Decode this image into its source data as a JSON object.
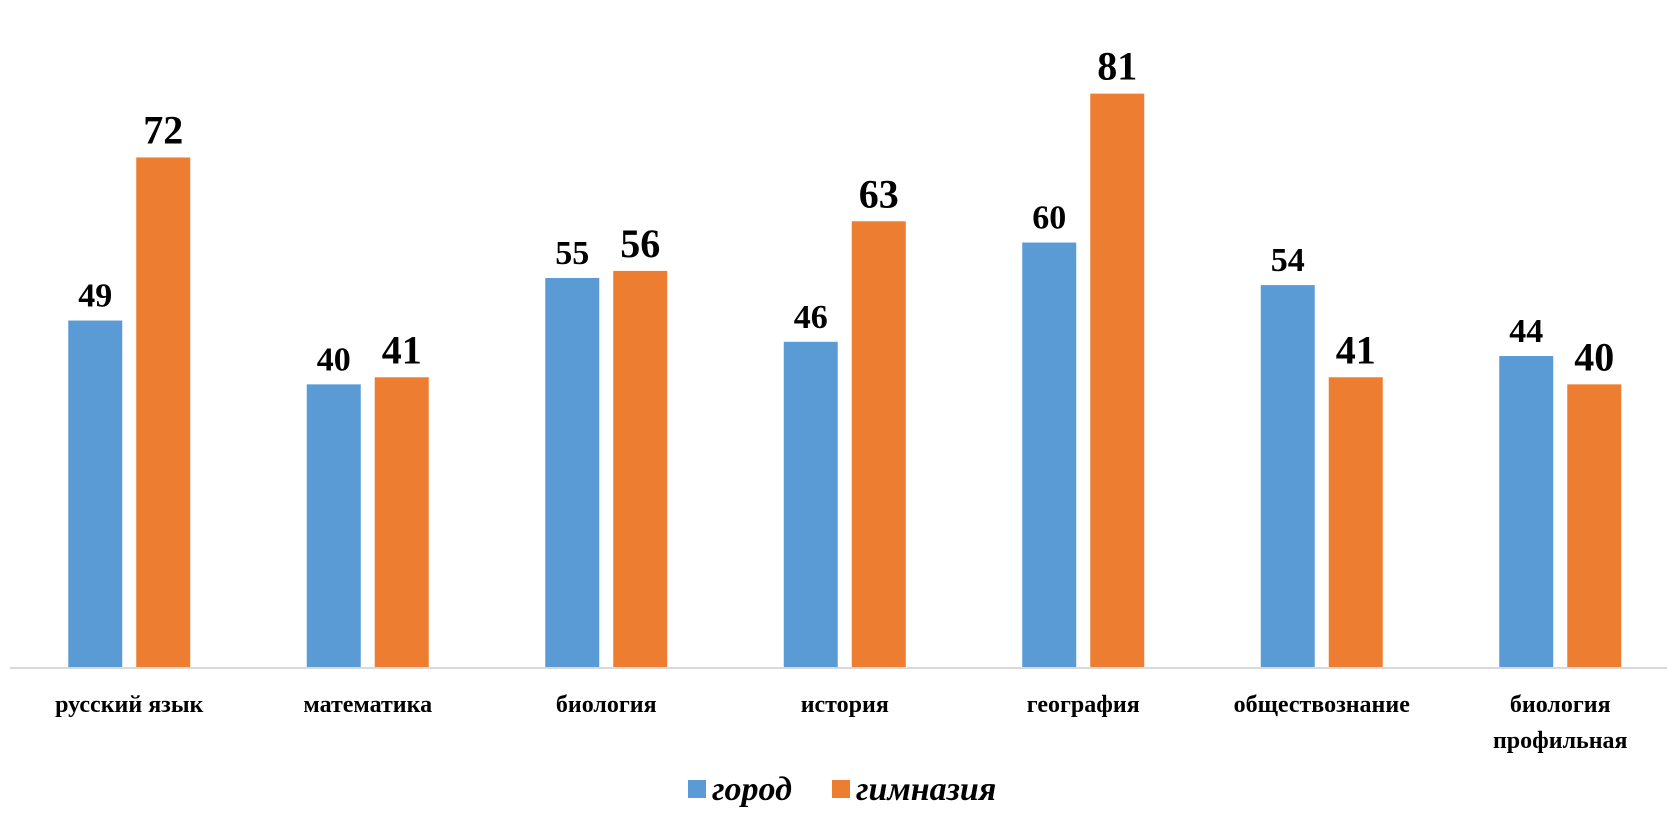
{
  "chart_data": {
    "type": "bar",
    "categories": [
      [
        "русский язык"
      ],
      [
        "математика"
      ],
      [
        "биология"
      ],
      [
        "история"
      ],
      [
        "география"
      ],
      [
        "обществознание"
      ],
      [
        "биология",
        "профильная"
      ]
    ],
    "series": [
      {
        "name": "город",
        "color": "#5B9BD5",
        "values": [
          49,
          40,
          55,
          46,
          60,
          54,
          44
        ]
      },
      {
        "name": "гимназия",
        "color": "#ED7D31",
        "values": [
          72,
          41,
          56,
          63,
          81,
          41,
          40
        ]
      }
    ],
    "ylim": [
      0,
      88
    ],
    "grid": false,
    "legend_position": "bottom",
    "data_labels": true
  }
}
